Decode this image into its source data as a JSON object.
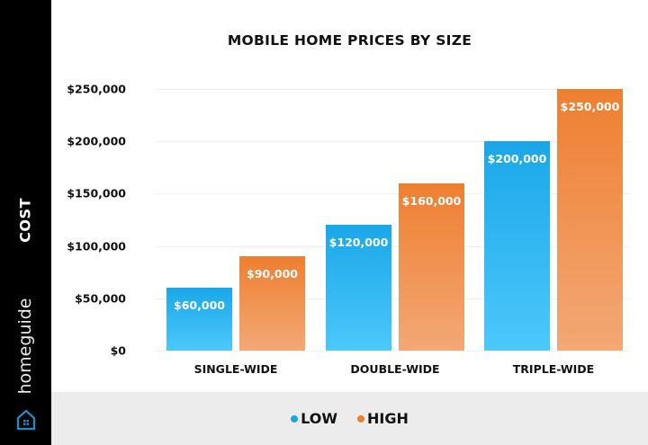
{
  "sidebar": {
    "axis_label": "COST",
    "brand": "homeguide",
    "logo_icon": "house-icon"
  },
  "colors": {
    "low": "#1aa7e8",
    "high": "#ee7f30",
    "sidebar_bg": "#000000",
    "legend_bg": "#ececec"
  },
  "chart_data": {
    "type": "bar",
    "title": "MOBILE HOME PRICES BY SIZE",
    "xlabel": "",
    "ylabel": "COST",
    "categories": [
      "SINGLE-WIDE",
      "DOUBLE-WIDE",
      "TRIPLE-WIDE"
    ],
    "series": [
      {
        "name": "LOW",
        "values": [
          60000,
          120000,
          200000
        ],
        "labels": [
          "$60,000",
          "$120,000",
          "$200,000"
        ]
      },
      {
        "name": "HIGH",
        "values": [
          90000,
          160000,
          250000
        ],
        "labels": [
          "$90,000",
          "$160,000",
          "$250,000"
        ]
      }
    ],
    "yticks": [
      "$0",
      "$50,000",
      "$100,000",
      "$150,000",
      "$200,000",
      "$250,000"
    ],
    "ylim": [
      0,
      250000
    ],
    "grid": true,
    "legend_position": "bottom"
  },
  "legend": {
    "items": [
      {
        "label": "LOW"
      },
      {
        "label": "HIGH"
      }
    ]
  }
}
